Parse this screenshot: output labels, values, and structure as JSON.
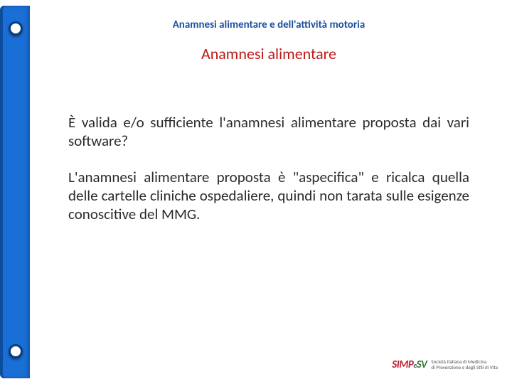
{
  "colors": {
    "spine": "#1a6fd6",
    "spine_shadow": "#0d4d9e",
    "hole_border": "#0a3d7a",
    "breadcrumb": "#1a4fa0",
    "subhead": "#c01818",
    "body": "#2b2b2b",
    "logo_simp": "#c02030",
    "logo_sv": "#2f7a3a",
    "logo_tag": "#555555"
  },
  "breadcrumb": "Anamnesi alimentare e dell'attività motoria",
  "subhead": "Anamnesi alimentare",
  "paragraphs": [
    "È valida e/o sufficiente l'anamnesi alimentare proposta dai vari software?",
    "L'anamnesi alimentare proposta è \"aspecifica\" e ricalca quella delle cartelle cliniche ospedaliere, quindi non tarata sulle esigenze conoscitive del MMG."
  ],
  "logo": {
    "part1": "SIMP",
    "e": "e",
    "part2": "SV",
    "tag1": "Società Italiana di Medicina",
    "tag2": "di Prevenzione e degli Stili di Vita"
  }
}
